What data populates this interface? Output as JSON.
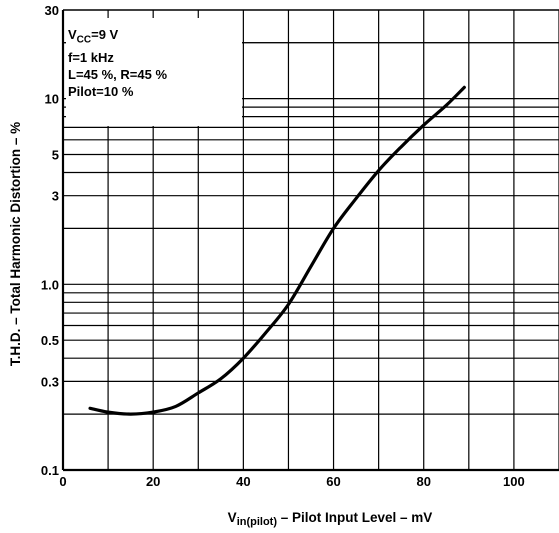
{
  "chart_data": {
    "type": "line",
    "title": "",
    "xlabel": "Vin(pilot) – Pilot Input Level – mV",
    "xlabel_main": "V",
    "xlabel_sub": "in(pilot)",
    "xlabel_rest": " – Pilot Input Level – mV",
    "ylabel": "T.H.D. – Total Harmonic Distortion – %",
    "xlim": [
      0,
      110
    ],
    "ylim": [
      0.1,
      30
    ],
    "yscale": "log",
    "grid": true,
    "x_ticks": [
      0,
      20,
      40,
      60,
      80,
      100
    ],
    "x_tick_labels": [
      "0",
      "20",
      "40",
      "60",
      "80",
      "100"
    ],
    "y_ticks": [
      0.1,
      0.3,
      0.5,
      1.0,
      3,
      5,
      10,
      30
    ],
    "y_tick_labels": [
      "0.1",
      "0.3",
      "0.5",
      "1.0",
      "3",
      "5",
      "10",
      "30"
    ],
    "series": [
      {
        "x": [
          6,
          10,
          15,
          20,
          25,
          30,
          35,
          40,
          45,
          50,
          55,
          60,
          65,
          70,
          75,
          80,
          85,
          89
        ],
        "y": [
          0.215,
          0.205,
          0.2,
          0.205,
          0.22,
          0.26,
          0.31,
          0.4,
          0.55,
          0.78,
          1.25,
          2.0,
          2.9,
          4.1,
          5.5,
          7.2,
          9.2,
          11.5
        ]
      }
    ]
  },
  "legend": {
    "vcc_main": "V",
    "vcc_sub": "CC",
    "vcc_rest": "=9  V",
    "freq": "f=1  kHz",
    "levels": "L=45 %, R=45 %",
    "pilot": "Pilot=10 %"
  }
}
